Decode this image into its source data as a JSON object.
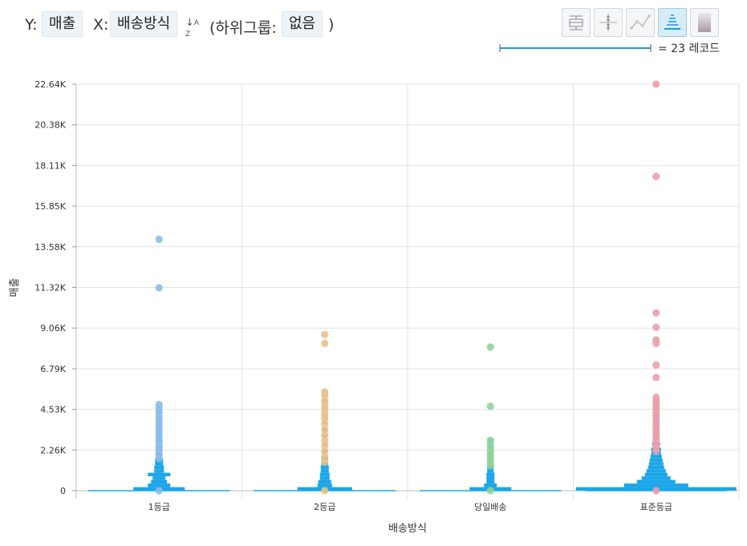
{
  "toolbar": {
    "y_prefix": "Y:",
    "y_value": "매출",
    "x_prefix": "X:",
    "x_value": "배송방식",
    "subgroup_prefix": "(하위그룹:",
    "subgroup_value": "없음",
    "subgroup_suffix": ")",
    "sort_icon": "sort-az-icon",
    "view_buttons": [
      {
        "icon": "boxplot-icon",
        "active": false
      },
      {
        "icon": "dot-strip-icon",
        "active": false
      },
      {
        "icon": "line-icon",
        "active": false
      },
      {
        "icon": "violin-histogram-icon",
        "active": true
      },
      {
        "icon": "gradient-icon",
        "active": false
      }
    ]
  },
  "legend": {
    "text": "= 23 레코드",
    "color": "#1a9bd7"
  },
  "chart_data": {
    "type": "scatter",
    "xlabel": "배송방식",
    "ylabel": "매출",
    "categories": [
      "1등급",
      "2등급",
      "당일배송",
      "표준등급"
    ],
    "yticks": [
      "0",
      "2.26K",
      "4.53K",
      "6.79K",
      "9.06K",
      "11.32K",
      "13.58K",
      "15.85K",
      "18.11K",
      "20.38K",
      "22.64K"
    ],
    "ylim": [
      0,
      22640
    ],
    "grid": true,
    "histogram_color": "#1ba6e8",
    "series": [
      {
        "category": "1등급",
        "color": "#8cbcea",
        "points": [
          14000,
          11300,
          4800,
          4600,
          4400,
          4200,
          4000,
          3800,
          3600,
          3400,
          3200,
          3000,
          2800,
          2600,
          2400,
          2200,
          2000,
          1800,
          0
        ]
      },
      {
        "category": "2등급",
        "color": "#ecc089",
        "points": [
          8700,
          8200,
          5500,
          5300,
          5000,
          4800,
          4600,
          4400,
          4200,
          4000,
          3700,
          3400,
          3100,
          2800,
          2500,
          2200,
          1900,
          1600,
          0
        ]
      },
      {
        "category": "당일배송",
        "color": "#8fd39c",
        "points": [
          8000,
          4700,
          2800,
          2600,
          2400,
          2200,
          2000,
          1800,
          1600,
          1400,
          0
        ]
      },
      {
        "category": "표준등급",
        "color": "#e9a0aa",
        "points": [
          22640,
          17500,
          9900,
          9100,
          8400,
          8200,
          7000,
          6300,
          5200,
          5000,
          4800,
          4600,
          4400,
          4200,
          4000,
          3800,
          3600,
          3400,
          3200,
          3000,
          2800,
          2600,
          2400,
          2200,
          0
        ]
      }
    ],
    "histograms": [
      {
        "category": "1등급",
        "bins": [
          {
            "y": 100,
            "hw": 32
          },
          {
            "y": 300,
            "hw": 14
          },
          {
            "y": 500,
            "hw": 10
          },
          {
            "y": 700,
            "hw": 8
          },
          {
            "y": 900,
            "hw": 14
          },
          {
            "y": 1100,
            "hw": 6
          },
          {
            "y": 1300,
            "hw": 6
          },
          {
            "y": 1500,
            "hw": 5
          },
          {
            "y": 1700,
            "hw": 5
          },
          {
            "y": 2000,
            "hw": 4
          },
          {
            "y": 2400,
            "hw": 4
          },
          {
            "y": 2800,
            "hw": 3
          },
          {
            "y": 3200,
            "hw": 3
          },
          {
            "y": 3600,
            "hw": 3
          },
          {
            "y": 4000,
            "hw": 3
          },
          {
            "y": 4400,
            "hw": 3
          }
        ]
      },
      {
        "category": "2등급",
        "bins": [
          {
            "y": 100,
            "hw": 34
          },
          {
            "y": 300,
            "hw": 9
          },
          {
            "y": 500,
            "hw": 8
          },
          {
            "y": 700,
            "hw": 6
          },
          {
            "y": 900,
            "hw": 6
          },
          {
            "y": 1100,
            "hw": 5
          },
          {
            "y": 1300,
            "hw": 5
          },
          {
            "y": 1500,
            "hw": 4
          },
          {
            "y": 1800,
            "hw": 4
          },
          {
            "y": 2200,
            "hw": 3
          },
          {
            "y": 2600,
            "hw": 3
          },
          {
            "y": 3000,
            "hw": 3
          },
          {
            "y": 3400,
            "hw": 3
          },
          {
            "y": 3800,
            "hw": 3
          },
          {
            "y": 4200,
            "hw": 3
          },
          {
            "y": 4600,
            "hw": 3
          },
          {
            "y": 5000,
            "hw": 3
          },
          {
            "y": 5400,
            "hw": 3
          }
        ]
      },
      {
        "category": "당일배송",
        "bins": [
          {
            "y": 100,
            "hw": 26
          },
          {
            "y": 300,
            "hw": 8
          },
          {
            "y": 500,
            "hw": 5
          },
          {
            "y": 700,
            "hw": 5
          },
          {
            "y": 900,
            "hw": 5
          },
          {
            "y": 1100,
            "hw": 4
          },
          {
            "y": 1300,
            "hw": 4
          },
          {
            "y": 1600,
            "hw": 3
          },
          {
            "y": 2000,
            "hw": 3
          },
          {
            "y": 2400,
            "hw": 3
          },
          {
            "y": 2800,
            "hw": 3
          }
        ]
      },
      {
        "category": "표준등급",
        "bins": [
          {
            "y": 100,
            "hw": 100
          },
          {
            "y": 300,
            "hw": 40
          },
          {
            "y": 500,
            "hw": 24
          },
          {
            "y": 700,
            "hw": 18
          },
          {
            "y": 900,
            "hw": 14
          },
          {
            "y": 1100,
            "hw": 12
          },
          {
            "y": 1300,
            "hw": 10
          },
          {
            "y": 1500,
            "hw": 9
          },
          {
            "y": 1700,
            "hw": 8
          },
          {
            "y": 1900,
            "hw": 7
          },
          {
            "y": 2100,
            "hw": 6
          },
          {
            "y": 2300,
            "hw": 6
          },
          {
            "y": 2600,
            "hw": 5
          },
          {
            "y": 3000,
            "hw": 4
          },
          {
            "y": 3400,
            "hw": 4
          },
          {
            "y": 3800,
            "hw": 3
          },
          {
            "y": 4200,
            "hw": 3
          },
          {
            "y": 4600,
            "hw": 3
          },
          {
            "y": 5000,
            "hw": 3
          }
        ]
      }
    ]
  }
}
